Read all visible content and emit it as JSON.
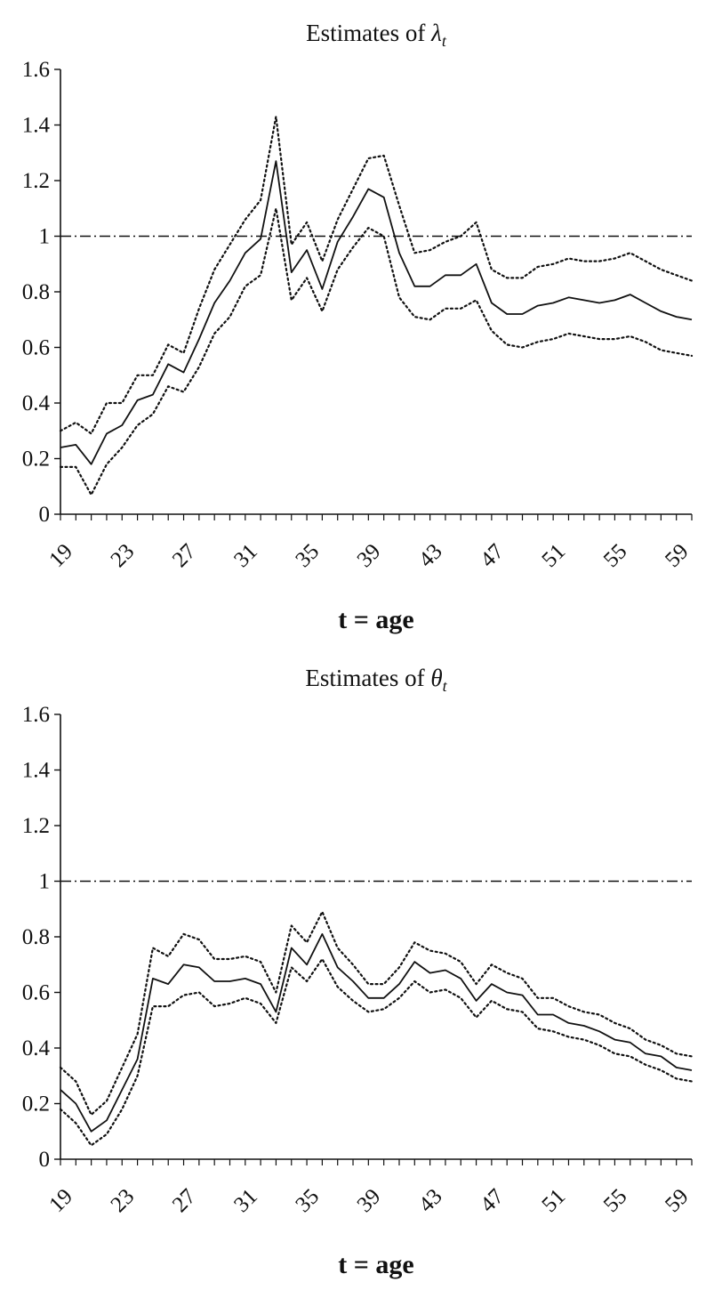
{
  "chart_data": [
    {
      "type": "line",
      "title_prefix": "Estimates of ",
      "title_symbol": "λ",
      "title_subscript": "t",
      "xlabel": "t = age",
      "ylabel": "",
      "ylim": [
        0,
        1.6
      ],
      "y_ticks": [
        "0",
        "0.2",
        "0.4",
        "0.6",
        "0.8",
        "1",
        "1.2",
        "1.4",
        "1.6"
      ],
      "x_ticks": [
        "19",
        "23",
        "27",
        "31",
        "35",
        "39",
        "43",
        "47",
        "51",
        "55",
        "59"
      ],
      "x": [
        19,
        20,
        21,
        22,
        23,
        24,
        25,
        26,
        27,
        28,
        29,
        30,
        31,
        32,
        33,
        34,
        35,
        36,
        37,
        38,
        39,
        40,
        41,
        42,
        43,
        44,
        45,
        46,
        47,
        48,
        49,
        50,
        51,
        52,
        53,
        54,
        55,
        56,
        57,
        58,
        59,
        60
      ],
      "reference_line": 1,
      "series": [
        {
          "style": "solid",
          "values": [
            0.24,
            0.25,
            0.18,
            0.29,
            0.32,
            0.41,
            0.43,
            0.54,
            0.51,
            0.63,
            0.76,
            0.84,
            0.94,
            0.99,
            1.27,
            0.87,
            0.95,
            0.81,
            0.98,
            1.07,
            1.17,
            1.14,
            0.94,
            0.82,
            0.82,
            0.86,
            0.86,
            0.9,
            0.76,
            0.72,
            0.72,
            0.75,
            0.76,
            0.78,
            0.77,
            0.76,
            0.77,
            0.79,
            0.76,
            0.73,
            0.71,
            0.7
          ]
        },
        {
          "style": "dotted",
          "values": [
            0.3,
            0.33,
            0.29,
            0.4,
            0.4,
            0.5,
            0.5,
            0.61,
            0.58,
            0.74,
            0.88,
            0.97,
            1.06,
            1.13,
            1.43,
            0.97,
            1.05,
            0.91,
            1.06,
            1.17,
            1.28,
            1.29,
            1.11,
            0.94,
            0.95,
            0.98,
            1.0,
            1.05,
            0.88,
            0.85,
            0.85,
            0.89,
            0.9,
            0.92,
            0.91,
            0.91,
            0.92,
            0.94,
            0.91,
            0.88,
            0.86,
            0.84
          ]
        },
        {
          "style": "dotted",
          "values": [
            0.17,
            0.17,
            0.07,
            0.18,
            0.24,
            0.32,
            0.36,
            0.46,
            0.44,
            0.53,
            0.65,
            0.71,
            0.82,
            0.86,
            1.1,
            0.77,
            0.85,
            0.73,
            0.88,
            0.96,
            1.03,
            1.0,
            0.78,
            0.71,
            0.7,
            0.74,
            0.74,
            0.77,
            0.66,
            0.61,
            0.6,
            0.62,
            0.63,
            0.65,
            0.64,
            0.63,
            0.63,
            0.64,
            0.62,
            0.59,
            0.58,
            0.57
          ]
        }
      ]
    },
    {
      "type": "line",
      "title_prefix": "Estimates of ",
      "title_symbol": "θ",
      "title_subscript": "t",
      "xlabel": "t = age",
      "ylabel": "",
      "ylim": [
        0,
        1.6
      ],
      "y_ticks": [
        "0",
        "0.2",
        "0.4",
        "0.6",
        "0.8",
        "1",
        "1.2",
        "1.4",
        "1.6"
      ],
      "x_ticks": [
        "19",
        "23",
        "27",
        "31",
        "35",
        "39",
        "43",
        "47",
        "51",
        "55",
        "59"
      ],
      "x": [
        19,
        20,
        21,
        22,
        23,
        24,
        25,
        26,
        27,
        28,
        29,
        30,
        31,
        32,
        33,
        34,
        35,
        36,
        37,
        38,
        39,
        40,
        41,
        42,
        43,
        44,
        45,
        46,
        47,
        48,
        49,
        50,
        51,
        52,
        53,
        54,
        55,
        56,
        57,
        58,
        59,
        60
      ],
      "reference_line": 1,
      "series": [
        {
          "style": "solid",
          "values": [
            0.25,
            0.2,
            0.1,
            0.14,
            0.25,
            0.36,
            0.65,
            0.63,
            0.7,
            0.69,
            0.64,
            0.64,
            0.65,
            0.63,
            0.53,
            0.76,
            0.7,
            0.81,
            0.69,
            0.64,
            0.58,
            0.58,
            0.63,
            0.71,
            0.67,
            0.68,
            0.65,
            0.57,
            0.63,
            0.6,
            0.59,
            0.52,
            0.52,
            0.49,
            0.48,
            0.46,
            0.43,
            0.42,
            0.38,
            0.37,
            0.33,
            0.32
          ]
        },
        {
          "style": "dotted",
          "values": [
            0.33,
            0.28,
            0.16,
            0.21,
            0.33,
            0.45,
            0.76,
            0.73,
            0.81,
            0.79,
            0.72,
            0.72,
            0.73,
            0.71,
            0.6,
            0.84,
            0.78,
            0.89,
            0.76,
            0.7,
            0.63,
            0.63,
            0.69,
            0.78,
            0.75,
            0.74,
            0.71,
            0.63,
            0.7,
            0.67,
            0.65,
            0.58,
            0.58,
            0.55,
            0.53,
            0.52,
            0.49,
            0.47,
            0.43,
            0.41,
            0.38,
            0.37
          ]
        },
        {
          "style": "dotted",
          "values": [
            0.18,
            0.13,
            0.05,
            0.09,
            0.18,
            0.3,
            0.55,
            0.55,
            0.59,
            0.6,
            0.55,
            0.56,
            0.58,
            0.56,
            0.49,
            0.69,
            0.64,
            0.72,
            0.62,
            0.57,
            0.53,
            0.54,
            0.58,
            0.64,
            0.6,
            0.61,
            0.58,
            0.51,
            0.57,
            0.54,
            0.53,
            0.47,
            0.46,
            0.44,
            0.43,
            0.41,
            0.38,
            0.37,
            0.34,
            0.32,
            0.29,
            0.28
          ]
        }
      ]
    }
  ]
}
